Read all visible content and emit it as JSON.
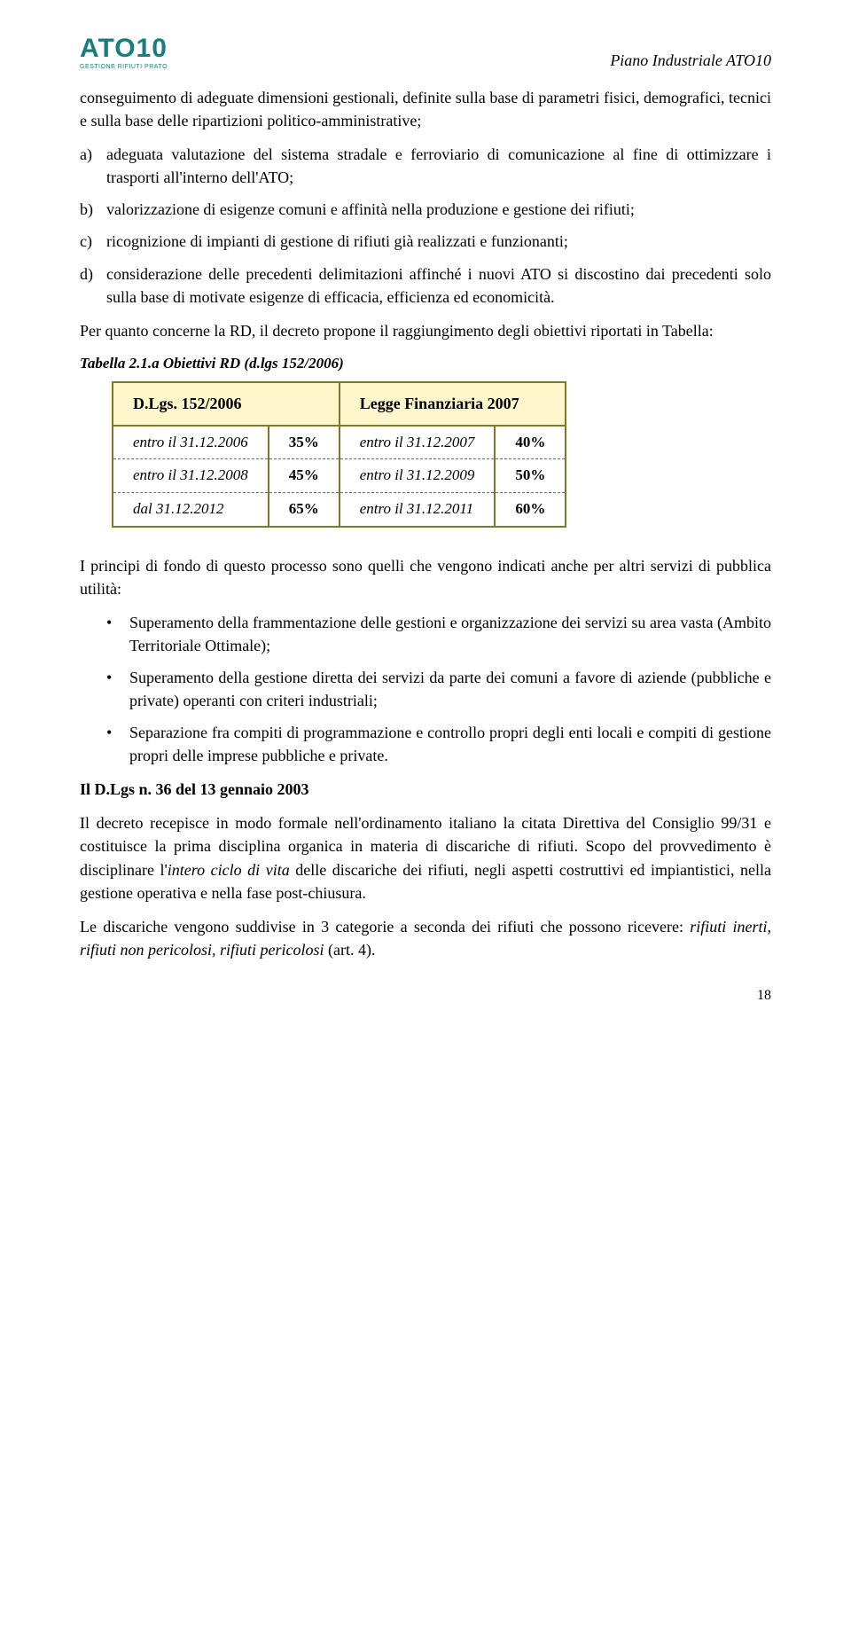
{
  "header": {
    "logo_main": "ATO10",
    "logo_sub": "GESTIONE RIFIUTI PRATO",
    "doc_title": "Piano Industriale ATO10"
  },
  "intro": "conseguimento di adeguate dimensioni gestionali, definite sulla base di parametri fisici, demografici, tecnici e sulla base delle ripartizioni politico-amministrative;",
  "alpha_list": [
    {
      "marker": "a)",
      "text": "adeguata valutazione del sistema stradale e ferroviario di comunicazione al fine di ottimizzare i trasporti all'interno dell'ATO;"
    },
    {
      "marker": "b)",
      "text": "valorizzazione di esigenze comuni e affinità nella produzione e gestione dei rifiuti;"
    },
    {
      "marker": "c)",
      "text": "ricognizione di impianti di gestione di rifiuti già realizzati e funzionanti;"
    },
    {
      "marker": "d)",
      "text": "considerazione delle precedenti delimitazioni affinché i nuovi ATO si discostino dai precedenti solo sulla base di motivate esigenze di efficacia, efficienza ed economicità."
    }
  ],
  "para_rd": "Per quanto concerne la RD, il decreto propone il raggiungimento degli obiettivi riportati in Tabella:",
  "table": {
    "caption": "Tabella 2.1.a Obiettivi RD (d.lgs 152/2006)",
    "headers": [
      "D.Lgs. 152/2006",
      "Legge Finanziaria 2007"
    ],
    "rows": [
      {
        "d1": "entro il 31.12.2006",
        "p1": "35%",
        "d2": "entro il 31.12.2007",
        "p2": "40%"
      },
      {
        "d1": "entro il 31.12.2008",
        "p1": "45%",
        "d2": "entro il 31.12.2009",
        "p2": "50%"
      },
      {
        "d1": "dal  31.12.2012",
        "p1": "65%",
        "d2": "entro il 31.12.2011",
        "p2": "60%"
      }
    ]
  },
  "para_principi": "I principi di fondo di questo processo sono quelli che vengono indicati anche per altri servizi di pubblica utilità:",
  "bullets": [
    "Superamento della frammentazione delle gestioni e organizzazione dei servizi su area vasta (Ambito Territoriale Ottimale);",
    "Superamento della gestione diretta dei servizi da parte dei comuni a favore di aziende (pubbliche e private) operanti con criteri industriali;",
    "Separazione fra compiti di programmazione e controllo propri degli enti locali e compiti di gestione propri delle imprese pubbliche e private."
  ],
  "heading_dlgs": "Il D.Lgs n. 36 del 13 gennaio 2003",
  "para_decreto_pre": "Il decreto recepisce in modo formale nell'ordinamento italiano la citata Direttiva del Consiglio 99/31 e costituisce la prima disciplina organica in materia di discariche di rifiuti. Scopo del provvedimento è disciplinare l'",
  "para_decreto_italic1": "intero ciclo di vita",
  "para_decreto_post": " delle discariche dei rifiuti, negli aspetti costruttivi ed impiantistici, nella gestione operativa e nella fase post-chiusura.",
  "para_categorie_pre": "Le discariche vengono suddivise in 3 categorie a seconda dei rifiuti che possono ricevere: ",
  "para_categorie_italic": "rifiuti inerti, rifiuti non pericolosi, rifiuti pericolosi",
  "para_categorie_post": " (art. 4).",
  "page_number": "18"
}
